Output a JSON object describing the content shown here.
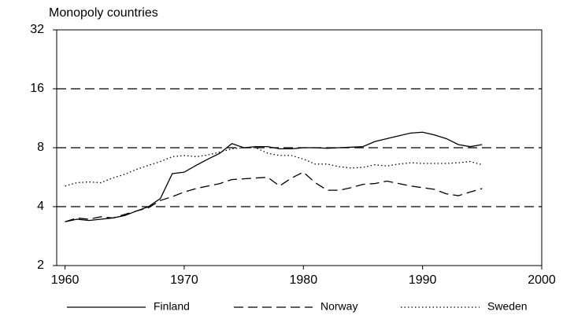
{
  "chart_data": {
    "type": "line",
    "title": "Monopoly countries",
    "x": [
      1960,
      1961,
      1962,
      1963,
      1964,
      1965,
      1966,
      1967,
      1968,
      1969,
      1970,
      1971,
      1972,
      1973,
      1974,
      1975,
      1976,
      1977,
      1978,
      1979,
      1980,
      1981,
      1982,
      1983,
      1984,
      1985,
      1986,
      1987,
      1988,
      1989,
      1990,
      1991,
      1992,
      1993,
      1994,
      1995
    ],
    "series": [
      {
        "name": "Finland",
        "color": "#000000",
        "dash": "solid",
        "values": [
          3.35,
          3.45,
          3.4,
          3.45,
          3.5,
          3.6,
          3.8,
          4.0,
          4.4,
          5.9,
          6.0,
          6.5,
          7.0,
          7.5,
          8.4,
          8.0,
          8.1,
          8.1,
          7.9,
          7.9,
          8.0,
          8.0,
          7.95,
          8.0,
          8.05,
          8.1,
          8.6,
          8.9,
          9.2,
          9.5,
          9.6,
          9.3,
          8.9,
          8.3,
          8.1,
          8.3
        ]
      },
      {
        "name": "Norway",
        "color": "#000000",
        "dash": "dashed",
        "values": [
          3.35,
          3.5,
          3.45,
          3.55,
          3.5,
          3.65,
          3.8,
          3.95,
          4.3,
          4.5,
          4.75,
          4.95,
          5.1,
          5.25,
          5.5,
          5.55,
          5.6,
          5.65,
          5.1,
          5.6,
          6.0,
          5.3,
          4.85,
          4.85,
          5.0,
          5.2,
          5.25,
          5.4,
          5.25,
          5.1,
          5.0,
          4.9,
          4.65,
          4.55,
          4.75,
          4.95
        ]
      },
      {
        "name": "Sweden",
        "color": "#000000",
        "dash": "dotted",
        "values": [
          5.1,
          5.3,
          5.35,
          5.3,
          5.6,
          5.85,
          6.2,
          6.5,
          6.8,
          7.2,
          7.3,
          7.2,
          7.35,
          7.6,
          7.9,
          8.0,
          8.0,
          7.5,
          7.3,
          7.3,
          7.0,
          6.6,
          6.6,
          6.4,
          6.3,
          6.35,
          6.55,
          6.45,
          6.6,
          6.7,
          6.65,
          6.65,
          6.65,
          6.7,
          6.8,
          6.55
        ]
      }
    ],
    "xlim": [
      1959.3,
      2000
    ],
    "xticks": [
      1960,
      1970,
      1980,
      1990,
      2000
    ],
    "ylim": [
      2,
      32
    ],
    "yticks": [
      2,
      4,
      8,
      16,
      32
    ],
    "ylog": true,
    "grid": true,
    "legend": "bottom"
  }
}
